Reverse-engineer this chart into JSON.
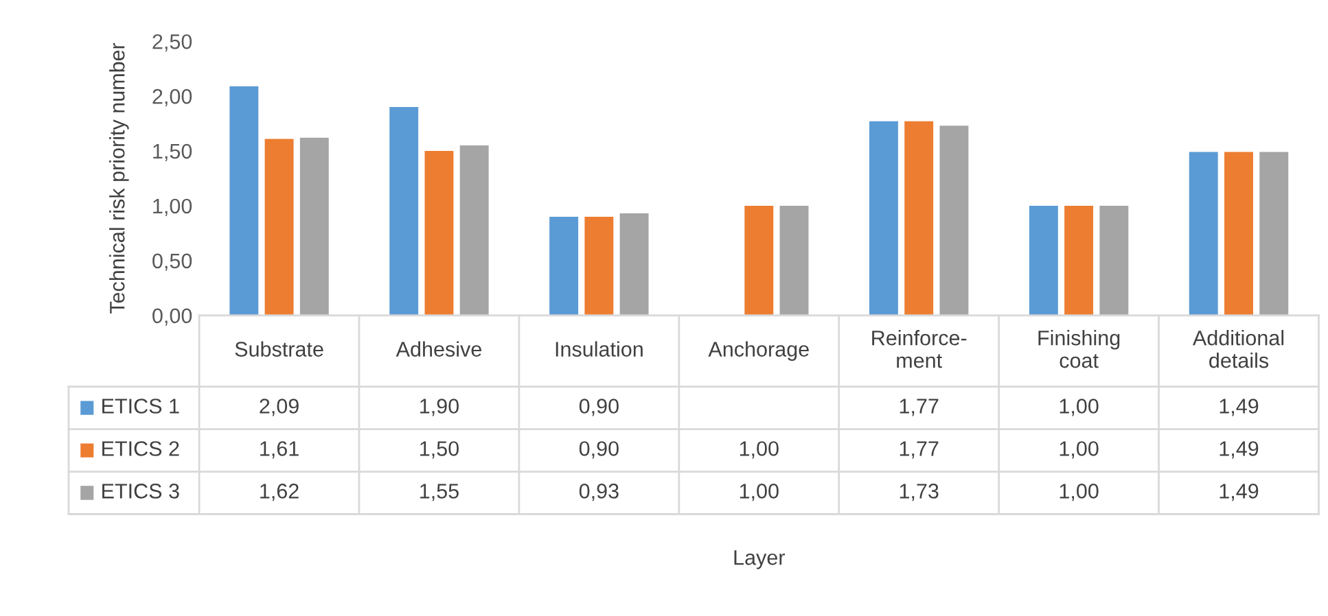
{
  "chart_data": {
    "type": "bar",
    "annotations": [
      "Layer"
    ],
    "ylabel": "Technical risk priority number",
    "categories": [
      "Substrate",
      "Adhesive",
      "Insulation",
      "Anchorage",
      "Reinforce-\nment",
      "Finishing coat",
      "Additional details"
    ],
    "series": [
      {
        "name": "ETICS 1",
        "color": "#5b9bd5",
        "values": [
          2.09,
          1.9,
          0.9,
          null,
          1.77,
          1.0,
          1.49
        ],
        "value_labels": [
          "2,09",
          "1,90",
          "0,90",
          null,
          "1,77",
          "1,00",
          "1,49"
        ]
      },
      {
        "name": "ETICS 2",
        "color": "#ed7d31",
        "values": [
          1.61,
          1.5,
          0.9,
          1.0,
          1.77,
          1.0,
          1.49
        ],
        "value_labels": [
          "1,61",
          "1,50",
          "0,90",
          "1,00",
          "1,77",
          "1,00",
          "1,49"
        ]
      },
      {
        "name": "ETICS 3",
        "color": "#a5a5a5",
        "values": [
          1.62,
          1.55,
          0.93,
          1.0,
          1.73,
          1.0,
          1.49
        ],
        "value_labels": [
          "1,62",
          "1,55",
          "0,93",
          "1,00",
          "1,73",
          "1,00",
          "1,49"
        ]
      }
    ],
    "ylim": [
      0,
      2.5
    ],
    "yticks": [
      {
        "value": 0,
        "label": "0,00"
      },
      {
        "value": 0.5,
        "label": "0,50"
      },
      {
        "value": 1,
        "label": "1,00"
      },
      {
        "value": 1.5,
        "label": "1,50"
      },
      {
        "value": 2,
        "label": "2,00"
      },
      {
        "value": 2.5,
        "label": "2,50"
      }
    ],
    "grid": false,
    "legend": "bottom left"
  }
}
